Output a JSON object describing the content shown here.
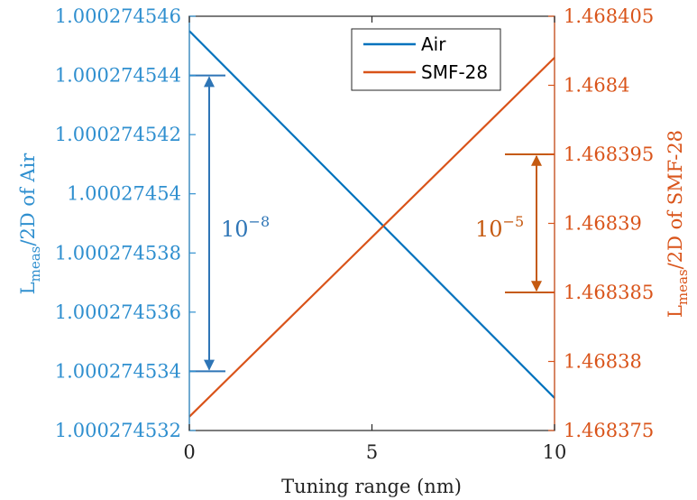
{
  "chart_data": {
    "type": "line",
    "xlabel": "Tuning range (nm)",
    "xlim": [
      0,
      10
    ],
    "x_ticks": [
      "0",
      "5",
      "10"
    ],
    "y_left": {
      "label_main": "L",
      "label_sub": "meas",
      "label_rest": "/2D of Air",
      "lim": [
        1.000274532,
        1.000274546
      ],
      "ticks": [
        "1.000274532",
        "1.000274534",
        "1.000274536",
        "1.000274538",
        "1.00027454",
        "1.000274542",
        "1.000274544",
        "1.000274546"
      ],
      "color": "#2f8fcf"
    },
    "y_right": {
      "label_main": "L",
      "label_sub": "meas",
      "label_rest": "/2D of SMF-28",
      "lim": [
        1.468375,
        1.468405
      ],
      "ticks": [
        "1.468375",
        "1.46838",
        "1.468385",
        "1.46839",
        "1.468395",
        "1.4684",
        "1.468405"
      ],
      "color": "#d9541a"
    },
    "series": [
      {
        "name": "Air",
        "axis": "left",
        "color": "#0072bd",
        "x": [
          0,
          10
        ],
        "y": [
          1.0002745455,
          1.0002745331
        ]
      },
      {
        "name": "SMF-28",
        "axis": "right",
        "color": "#d95319",
        "x": [
          0,
          10
        ],
        "y": [
          1.468376,
          1.468402
        ]
      }
    ],
    "annotations": [
      {
        "axis": "left",
        "text_base": "10",
        "text_exp": "−8",
        "from": 1.000274534,
        "to": 1.000274544,
        "color": "#2e75b6"
      },
      {
        "axis": "right",
        "text_base": "10",
        "text_exp": "−5",
        "from": 1.468385,
        "to": 1.468395,
        "color": "#c55a11"
      }
    ],
    "legend_position": "top-right",
    "grid": false
  }
}
